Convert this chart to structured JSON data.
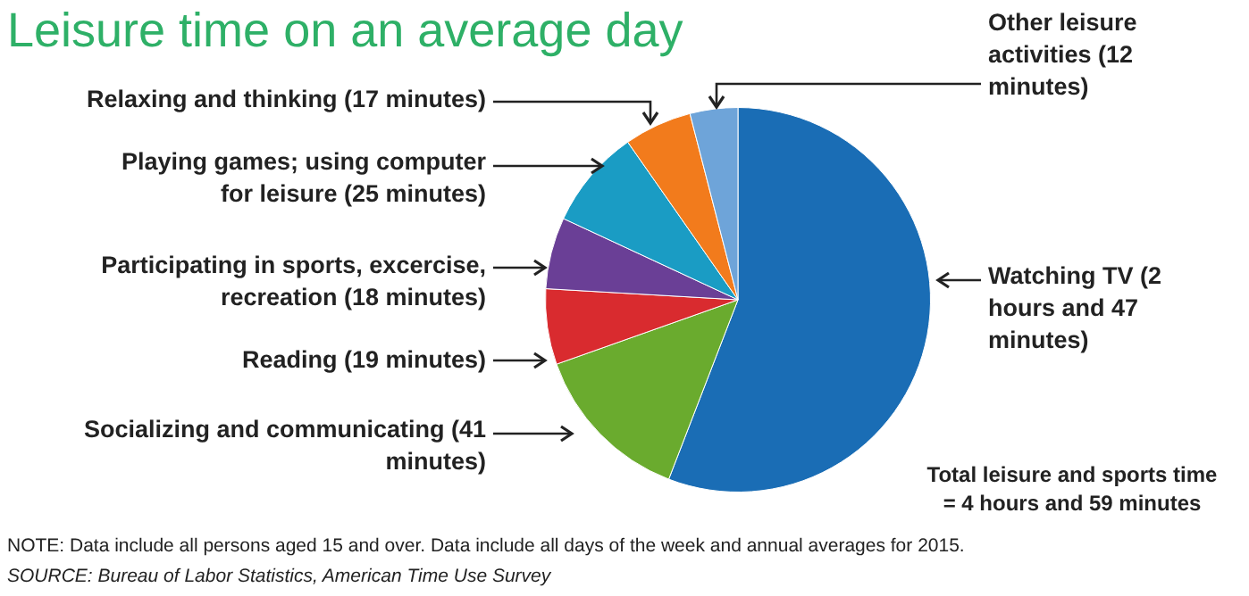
{
  "chart_data": {
    "type": "pie",
    "title": "Leisure time on an average day",
    "categories": [
      "Watching TV (2 hours and 47 minutes)",
      "Socializing and communicating (41 minutes)",
      "Reading (19 minutes)",
      "Participating in sports, excercise, recreation (18 minutes)",
      "Playing games; using computer for leisure (25 minutes)",
      "Relaxing and thinking (17 minutes)",
      "Other leisure activities (12 minutes)"
    ],
    "values": [
      167,
      41,
      19,
      18,
      25,
      17,
      12
    ],
    "colors": [
      "#1a6db5",
      "#6aab2e",
      "#d92b2f",
      "#6a3f96",
      "#1a9cc4",
      "#f27b1c",
      "#6ea4d9"
    ],
    "annotations": [
      "Total leisure and sports time = 4 hours and 59 minutes",
      "NOTE: Data include all persons aged 15 and over. Data include all days of the week and annual averages for 2015.",
      "SOURCE: Bureau of Labor Statistics, American Time Use Survey"
    ]
  }
}
